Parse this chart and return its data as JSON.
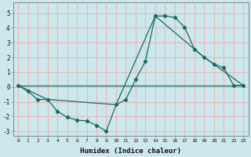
{
  "xlabel": "Humidex (Indice chaleur)",
  "xlim": [
    -0.5,
    23.5
  ],
  "ylim": [
    -3.3,
    5.7
  ],
  "bg_color": "#cce8ec",
  "plot_bg_color": "#cce8ec",
  "line_color": "#1a6b5e",
  "grid_color": "#e8b8b8",
  "line1_x": [
    0,
    1,
    2,
    3,
    4,
    5,
    6,
    7,
    8,
    9,
    10,
    11,
    12,
    13,
    14,
    15,
    16,
    17,
    18,
    19,
    20,
    21,
    22,
    23
  ],
  "line1_y": [
    0.1,
    -0.3,
    -0.85,
    -0.85,
    -1.65,
    -2.05,
    -2.25,
    -2.3,
    -2.6,
    -3.0,
    -1.2,
    -0.85,
    0.5,
    1.75,
    4.8,
    4.8,
    4.7,
    4.05,
    2.55,
    2.0,
    1.55,
    1.3,
    0.1,
    0.1
  ],
  "line2_x": [
    0,
    3,
    10,
    14,
    19,
    23
  ],
  "line2_y": [
    0.1,
    -0.85,
    -1.2,
    4.8,
    2.0,
    0.1
  ],
  "line3_x": [
    0,
    23
  ],
  "line3_y": [
    0.1,
    0.1
  ],
  "yticks": [
    -3,
    -2,
    -1,
    0,
    1,
    2,
    3,
    4,
    5
  ],
  "xticks": [
    0,
    1,
    2,
    3,
    4,
    5,
    6,
    7,
    8,
    9,
    10,
    11,
    12,
    13,
    14,
    15,
    16,
    17,
    18,
    19,
    20,
    21,
    22,
    23
  ]
}
